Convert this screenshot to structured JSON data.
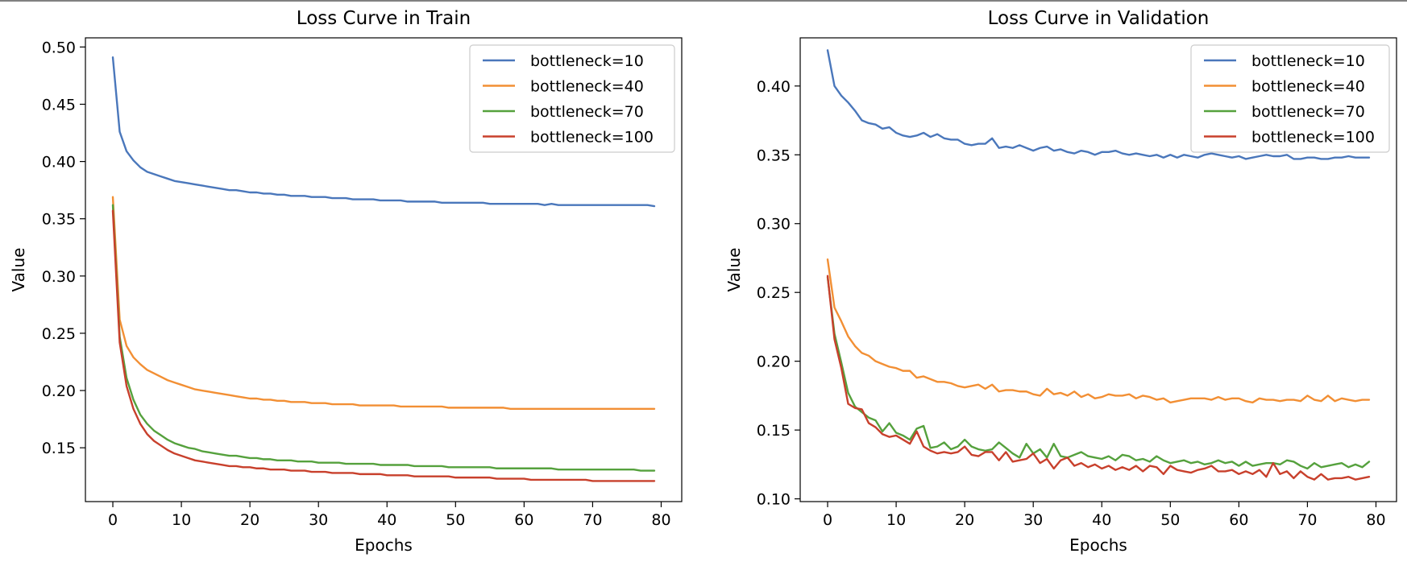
{
  "chart_data": [
    {
      "type": "line",
      "title": "Loss Curve in Train",
      "xlabel": "Epochs",
      "ylabel": "Value",
      "xlim": [
        -4,
        83
      ],
      "ylim": [
        0.103,
        0.508
      ],
      "xticks": [
        0,
        10,
        20,
        30,
        40,
        50,
        60,
        70,
        80
      ],
      "xtick_labels": [
        "0",
        "10",
        "20",
        "30",
        "40",
        "50",
        "60",
        "70",
        "80"
      ],
      "yticks": [
        0.1,
        0.15,
        0.2,
        0.25,
        0.3,
        0.35,
        0.4,
        0.45,
        0.5
      ],
      "ytick_labels": [
        "0.10",
        "0.15",
        "0.20",
        "0.25",
        "0.30",
        "0.35",
        "0.40",
        "0.45",
        "0.50"
      ],
      "grid": false,
      "legend_position": "top-right",
      "x_start": 0,
      "x_step": 1,
      "series": [
        {
          "name": "bottleneck=10",
          "color": "#4a77bb",
          "values": [
            0.491,
            0.426,
            0.409,
            0.401,
            0.395,
            0.391,
            0.389,
            0.387,
            0.385,
            0.383,
            0.382,
            0.381,
            0.38,
            0.379,
            0.378,
            0.377,
            0.376,
            0.375,
            0.375,
            0.374,
            0.373,
            0.373,
            0.372,
            0.372,
            0.371,
            0.371,
            0.37,
            0.37,
            0.37,
            0.369,
            0.369,
            0.369,
            0.368,
            0.368,
            0.368,
            0.367,
            0.367,
            0.367,
            0.367,
            0.366,
            0.366,
            0.366,
            0.366,
            0.365,
            0.365,
            0.365,
            0.365,
            0.365,
            0.364,
            0.364,
            0.364,
            0.364,
            0.364,
            0.364,
            0.364,
            0.363,
            0.363,
            0.363,
            0.363,
            0.363,
            0.363,
            0.363,
            0.363,
            0.362,
            0.363,
            0.362,
            0.362,
            0.362,
            0.362,
            0.362,
            0.362,
            0.362,
            0.362,
            0.362,
            0.362,
            0.362,
            0.362,
            0.362,
            0.362,
            0.361
          ]
        },
        {
          "name": "bottleneck=40",
          "color": "#f28f34",
          "values": [
            0.369,
            0.262,
            0.239,
            0.229,
            0.223,
            0.218,
            0.215,
            0.212,
            0.209,
            0.207,
            0.205,
            0.203,
            0.201,
            0.2,
            0.199,
            0.198,
            0.197,
            0.196,
            0.195,
            0.194,
            0.193,
            0.193,
            0.192,
            0.192,
            0.191,
            0.191,
            0.19,
            0.19,
            0.19,
            0.189,
            0.189,
            0.189,
            0.188,
            0.188,
            0.188,
            0.188,
            0.187,
            0.187,
            0.187,
            0.187,
            0.187,
            0.187,
            0.186,
            0.186,
            0.186,
            0.186,
            0.186,
            0.186,
            0.186,
            0.185,
            0.185,
            0.185,
            0.185,
            0.185,
            0.185,
            0.185,
            0.185,
            0.185,
            0.184,
            0.184,
            0.184,
            0.184,
            0.184,
            0.184,
            0.184,
            0.184,
            0.184,
            0.184,
            0.184,
            0.184,
            0.184,
            0.184,
            0.184,
            0.184,
            0.184,
            0.184,
            0.184,
            0.184,
            0.184,
            0.184
          ]
        },
        {
          "name": "bottleneck=70",
          "color": "#55a13d",
          "values": [
            0.362,
            0.247,
            0.211,
            0.192,
            0.179,
            0.171,
            0.165,
            0.161,
            0.157,
            0.154,
            0.152,
            0.15,
            0.149,
            0.147,
            0.146,
            0.145,
            0.144,
            0.143,
            0.143,
            0.142,
            0.141,
            0.141,
            0.14,
            0.14,
            0.139,
            0.139,
            0.139,
            0.138,
            0.138,
            0.138,
            0.137,
            0.137,
            0.137,
            0.137,
            0.136,
            0.136,
            0.136,
            0.136,
            0.136,
            0.135,
            0.135,
            0.135,
            0.135,
            0.135,
            0.134,
            0.134,
            0.134,
            0.134,
            0.134,
            0.133,
            0.133,
            0.133,
            0.133,
            0.133,
            0.133,
            0.133,
            0.132,
            0.132,
            0.132,
            0.132,
            0.132,
            0.132,
            0.132,
            0.132,
            0.132,
            0.131,
            0.131,
            0.131,
            0.131,
            0.131,
            0.131,
            0.131,
            0.131,
            0.131,
            0.131,
            0.131,
            0.131,
            0.13,
            0.13,
            0.13
          ]
        },
        {
          "name": "bottleneck=100",
          "color": "#c8402c",
          "values": [
            0.357,
            0.242,
            0.204,
            0.184,
            0.171,
            0.162,
            0.156,
            0.152,
            0.148,
            0.145,
            0.143,
            0.141,
            0.139,
            0.138,
            0.137,
            0.136,
            0.135,
            0.134,
            0.134,
            0.133,
            0.133,
            0.132,
            0.132,
            0.131,
            0.131,
            0.131,
            0.13,
            0.13,
            0.13,
            0.129,
            0.129,
            0.129,
            0.128,
            0.128,
            0.128,
            0.128,
            0.127,
            0.127,
            0.127,
            0.127,
            0.126,
            0.126,
            0.126,
            0.126,
            0.125,
            0.125,
            0.125,
            0.125,
            0.125,
            0.125,
            0.124,
            0.124,
            0.124,
            0.124,
            0.124,
            0.124,
            0.123,
            0.123,
            0.123,
            0.123,
            0.123,
            0.122,
            0.122,
            0.122,
            0.122,
            0.122,
            0.122,
            0.122,
            0.122,
            0.122,
            0.121,
            0.121,
            0.121,
            0.121,
            0.121,
            0.121,
            0.121,
            0.121,
            0.121,
            0.121
          ]
        }
      ]
    },
    {
      "type": "line",
      "title": "Loss Curve in Validation",
      "xlabel": "Epochs",
      "ylabel": "Value",
      "xlim": [
        -4,
        83
      ],
      "ylim": [
        0.098,
        0.435
      ],
      "xticks": [
        0,
        10,
        20,
        30,
        40,
        50,
        60,
        70,
        80
      ],
      "xtick_labels": [
        "0",
        "10",
        "20",
        "30",
        "40",
        "50",
        "60",
        "70",
        "80"
      ],
      "yticks": [
        0.1,
        0.15,
        0.2,
        0.25,
        0.3,
        0.35,
        0.4
      ],
      "ytick_labels": [
        "0.10",
        "0.15",
        "0.20",
        "0.25",
        "0.30",
        "0.35",
        "0.40"
      ],
      "grid": false,
      "legend_position": "top-right",
      "x_start": 0,
      "x_step": 1,
      "series": [
        {
          "name": "bottleneck=10",
          "color": "#4a77bb",
          "values": [
            0.426,
            0.4,
            0.393,
            0.388,
            0.382,
            0.375,
            0.373,
            0.372,
            0.369,
            0.37,
            0.366,
            0.364,
            0.363,
            0.364,
            0.366,
            0.363,
            0.365,
            0.362,
            0.361,
            0.361,
            0.358,
            0.357,
            0.358,
            0.358,
            0.362,
            0.355,
            0.356,
            0.355,
            0.357,
            0.355,
            0.353,
            0.355,
            0.356,
            0.353,
            0.354,
            0.352,
            0.351,
            0.353,
            0.352,
            0.35,
            0.352,
            0.352,
            0.353,
            0.351,
            0.35,
            0.351,
            0.35,
            0.349,
            0.35,
            0.348,
            0.35,
            0.348,
            0.35,
            0.349,
            0.348,
            0.35,
            0.351,
            0.35,
            0.349,
            0.348,
            0.349,
            0.347,
            0.348,
            0.349,
            0.35,
            0.349,
            0.349,
            0.35,
            0.347,
            0.347,
            0.348,
            0.348,
            0.347,
            0.347,
            0.348,
            0.348,
            0.349,
            0.348,
            0.348,
            0.348
          ]
        },
        {
          "name": "bottleneck=40",
          "color": "#f28f34",
          "values": [
            0.274,
            0.239,
            0.229,
            0.218,
            0.211,
            0.206,
            0.204,
            0.2,
            0.198,
            0.196,
            0.195,
            0.193,
            0.193,
            0.188,
            0.189,
            0.187,
            0.185,
            0.185,
            0.184,
            0.182,
            0.181,
            0.182,
            0.183,
            0.18,
            0.183,
            0.178,
            0.179,
            0.179,
            0.178,
            0.178,
            0.176,
            0.175,
            0.18,
            0.176,
            0.177,
            0.175,
            0.178,
            0.174,
            0.176,
            0.173,
            0.174,
            0.176,
            0.175,
            0.175,
            0.176,
            0.173,
            0.175,
            0.174,
            0.172,
            0.173,
            0.17,
            0.171,
            0.172,
            0.173,
            0.173,
            0.173,
            0.172,
            0.174,
            0.172,
            0.173,
            0.173,
            0.171,
            0.17,
            0.173,
            0.172,
            0.172,
            0.171,
            0.172,
            0.172,
            0.171,
            0.175,
            0.172,
            0.171,
            0.175,
            0.171,
            0.173,
            0.172,
            0.171,
            0.172,
            0.172
          ]
        },
        {
          "name": "bottleneck=70",
          "color": "#55a13d",
          "values": [
            0.261,
            0.22,
            0.199,
            0.177,
            0.167,
            0.163,
            0.159,
            0.157,
            0.149,
            0.155,
            0.148,
            0.146,
            0.143,
            0.151,
            0.153,
            0.137,
            0.138,
            0.141,
            0.136,
            0.138,
            0.143,
            0.138,
            0.136,
            0.135,
            0.136,
            0.141,
            0.137,
            0.133,
            0.13,
            0.14,
            0.133,
            0.136,
            0.13,
            0.14,
            0.131,
            0.13,
            0.132,
            0.134,
            0.131,
            0.13,
            0.129,
            0.131,
            0.128,
            0.132,
            0.131,
            0.128,
            0.129,
            0.127,
            0.131,
            0.128,
            0.126,
            0.127,
            0.128,
            0.126,
            0.127,
            0.125,
            0.126,
            0.128,
            0.126,
            0.127,
            0.124,
            0.127,
            0.124,
            0.125,
            0.126,
            0.126,
            0.125,
            0.128,
            0.127,
            0.124,
            0.122,
            0.126,
            0.123,
            0.124,
            0.125,
            0.126,
            0.123,
            0.125,
            0.123,
            0.127
          ]
        },
        {
          "name": "bottleneck=100",
          "color": "#c8402c",
          "values": [
            0.262,
            0.216,
            0.195,
            0.169,
            0.166,
            0.165,
            0.155,
            0.152,
            0.147,
            0.145,
            0.146,
            0.143,
            0.14,
            0.149,
            0.138,
            0.135,
            0.133,
            0.134,
            0.133,
            0.134,
            0.138,
            0.132,
            0.131,
            0.134,
            0.134,
            0.128,
            0.134,
            0.127,
            0.128,
            0.129,
            0.133,
            0.126,
            0.129,
            0.122,
            0.128,
            0.13,
            0.124,
            0.126,
            0.123,
            0.125,
            0.122,
            0.124,
            0.121,
            0.123,
            0.121,
            0.124,
            0.12,
            0.124,
            0.123,
            0.118,
            0.124,
            0.121,
            0.12,
            0.119,
            0.121,
            0.122,
            0.124,
            0.12,
            0.12,
            0.121,
            0.118,
            0.12,
            0.118,
            0.121,
            0.116,
            0.126,
            0.118,
            0.12,
            0.115,
            0.12,
            0.116,
            0.114,
            0.118,
            0.114,
            0.115,
            0.115,
            0.116,
            0.114,
            0.115,
            0.116
          ]
        }
      ]
    }
  ]
}
